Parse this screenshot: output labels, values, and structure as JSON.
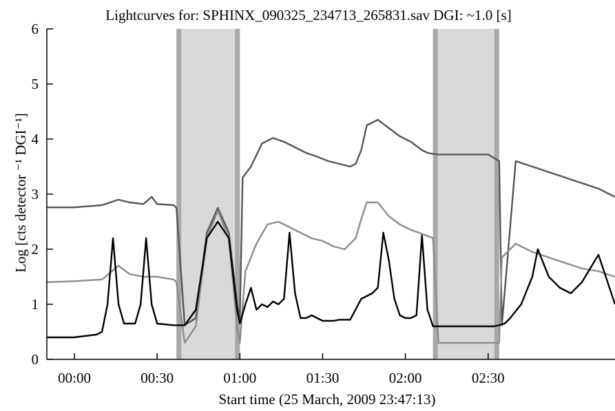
{
  "chart_data": {
    "type": "line",
    "title": "Lightcurves for: SPHINX_090325_234713_265831.sav DGI: ~1.0 [s]",
    "xlabel": "Start time (25 March, 2009 23:47:13)",
    "ylabel": "Log [cts detector ⁻¹ DGI⁻¹]",
    "x_unit": "minutes from start",
    "xlim": [
      -10,
      196
    ],
    "ylim": [
      0,
      6
    ],
    "x_ticks": [
      {
        "value": 0,
        "label": "00:00"
      },
      {
        "value": 30,
        "label": "00:30"
      },
      {
        "value": 60,
        "label": "01:00"
      },
      {
        "value": 90,
        "label": "01:30"
      },
      {
        "value": 120,
        "label": "02:00"
      },
      {
        "value": 150,
        "label": "02:30"
      }
    ],
    "y_ticks": [
      0,
      1,
      2,
      3,
      4,
      5,
      6
    ],
    "shaded_intervals": [
      {
        "start": 37,
        "end": 60
      },
      {
        "start": 130,
        "end": 154
      }
    ],
    "series": [
      {
        "color": "#555555",
        "x": [
          -10,
          0,
          10,
          16,
          20,
          25,
          28,
          30,
          36,
          37,
          40,
          44,
          48,
          52,
          56,
          59,
          60,
          61,
          64,
          68,
          72,
          76,
          80,
          84,
          88,
          92,
          96,
          100,
          102,
          104,
          106,
          110,
          114,
          118,
          122,
          126,
          128,
          130,
          132,
          150,
          154,
          155,
          160,
          166,
          172,
          178,
          184,
          190,
          196
        ],
        "y": [
          2.76,
          2.76,
          2.8,
          2.9,
          2.85,
          2.82,
          2.95,
          2.82,
          2.8,
          2.75,
          0.62,
          0.75,
          2.3,
          2.75,
          2.3,
          1.0,
          0.75,
          3.3,
          3.5,
          3.92,
          4.02,
          3.95,
          3.85,
          3.75,
          3.68,
          3.6,
          3.55,
          3.5,
          3.55,
          3.8,
          4.25,
          4.35,
          4.2,
          4.05,
          3.95,
          3.8,
          3.75,
          3.73,
          3.72,
          3.72,
          3.6,
          0.62,
          3.6,
          3.5,
          3.4,
          3.3,
          3.2,
          3.1,
          2.95
        ]
      },
      {
        "color": "#8c8c8c",
        "x": [
          -10,
          0,
          10,
          16,
          20,
          25,
          30,
          36,
          37,
          40,
          44,
          48,
          52,
          56,
          59,
          60,
          62,
          66,
          70,
          74,
          78,
          82,
          86,
          90,
          94,
          98,
          102,
          104,
          106,
          110,
          114,
          118,
          122,
          126,
          129,
          130,
          132,
          150,
          154,
          155,
          160,
          166,
          172,
          178,
          184,
          190,
          196
        ],
        "y": [
          1.4,
          1.42,
          1.45,
          1.7,
          1.55,
          1.5,
          1.5,
          1.45,
          1.4,
          0.3,
          0.6,
          2.2,
          2.7,
          2.2,
          0.6,
          0.3,
          1.6,
          2.1,
          2.45,
          2.5,
          2.4,
          2.3,
          2.2,
          2.15,
          2.05,
          2.0,
          2.2,
          2.55,
          2.85,
          2.85,
          2.6,
          2.45,
          2.35,
          2.28,
          2.22,
          2.2,
          0.3,
          0.3,
          0.3,
          1.85,
          2.1,
          1.95,
          1.85,
          1.75,
          1.65,
          1.6,
          1.5
        ]
      },
      {
        "color": "#000000",
        "x": [
          -10,
          0,
          8,
          10,
          12,
          14,
          16,
          18,
          20,
          22,
          24,
          26,
          28,
          30,
          36,
          40,
          44,
          48,
          52,
          56,
          59,
          60,
          62,
          64,
          66,
          68,
          70,
          72,
          74,
          76,
          78,
          80,
          82,
          84,
          86,
          88,
          90,
          92,
          94,
          96,
          100,
          104,
          108,
          110,
          112,
          114,
          116,
          118,
          120,
          122,
          124,
          126,
          128,
          130,
          136,
          140,
          144,
          148,
          152,
          154,
          156,
          158,
          162,
          166,
          168,
          172,
          176,
          180,
          184,
          190,
          196
        ],
        "y": [
          0.4,
          0.4,
          0.45,
          0.5,
          1.0,
          2.2,
          1.0,
          0.65,
          0.65,
          0.65,
          1.0,
          2.2,
          1.0,
          0.65,
          0.62,
          0.62,
          0.9,
          2.2,
          2.5,
          2.2,
          0.9,
          0.65,
          1.0,
          1.3,
          0.9,
          1.0,
          0.95,
          1.05,
          1.0,
          1.1,
          2.3,
          1.2,
          0.75,
          0.75,
          0.8,
          0.75,
          0.7,
          0.7,
          0.7,
          0.72,
          0.72,
          1.1,
          1.2,
          1.3,
          2.3,
          1.8,
          1.1,
          0.8,
          0.75,
          0.75,
          0.8,
          2.25,
          0.9,
          0.6,
          0.6,
          0.6,
          0.6,
          0.6,
          0.6,
          0.62,
          0.65,
          0.75,
          1.0,
          1.5,
          2.0,
          1.5,
          1.3,
          1.2,
          1.4,
          1.9,
          1.0
        ]
      }
    ]
  }
}
